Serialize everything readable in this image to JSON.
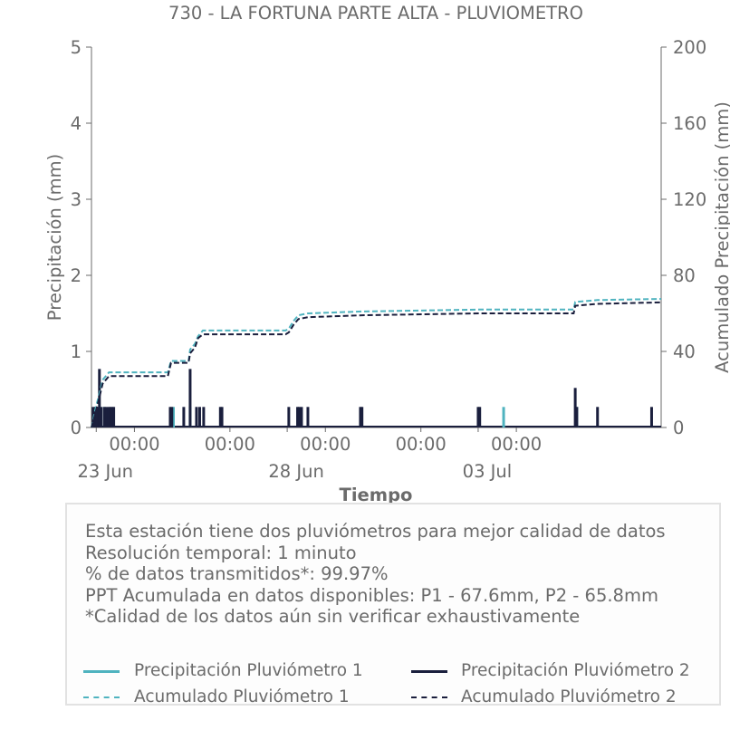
{
  "chart_data": {
    "type": "bar+line",
    "title": "730 - LA FORTUNA PARTE ALTA - PLUVIOMETRO",
    "xlabel": "Tiempo",
    "ylabel": "Precipitación (mm)",
    "y2label": "Acumulado Precipitación (mm)",
    "ylim": [
      0,
      5
    ],
    "y2lim": [
      0,
      200
    ],
    "yticks": [
      0,
      1,
      2,
      3,
      4,
      5
    ],
    "y2ticks": [
      0,
      40,
      80,
      120,
      160,
      200
    ],
    "xlim": [
      "2023-06-22T21:00",
      "2023-07-07T19:00"
    ],
    "x_time_ticks": [
      {
        "t": "2023-06-24T00:00",
        "label": "00:00"
      },
      {
        "t": "2023-06-26T12:00",
        "label": "00:00"
      },
      {
        "t": "2023-06-29T00:00",
        "label": "00:00"
      },
      {
        "t": "2023-07-01T12:00",
        "label": "00:00"
      },
      {
        "t": "2023-07-04T00:00",
        "label": "00:00"
      }
    ],
    "x_date_ticks": [
      {
        "t": "2023-06-23T00:00",
        "label": "23 Jun"
      },
      {
        "t": "2023-06-28T00:00",
        "label": "28 Jun"
      },
      {
        "t": "2023-07-03T00:00",
        "label": "03 Jul"
      }
    ],
    "colors": {
      "p1": "#4fb3bf",
      "p2": "#1a1f3d",
      "axis": "#6b6b6b"
    },
    "series": [
      {
        "name": "Precipitación Pluviómetro 1",
        "kind": "bar",
        "points": [
          {
            "t": "2023-06-22T23:00",
            "v": 0.27
          },
          {
            "t": "2023-06-23T05:00",
            "v": 0.27
          },
          {
            "t": "2023-06-25T00:30",
            "v": 0.27
          },
          {
            "t": "2023-06-25T11:00",
            "v": 0.27
          },
          {
            "t": "2023-07-03T16:00",
            "v": 0.27
          },
          {
            "t": "2023-07-05T14:00",
            "v": 0.27
          }
        ]
      },
      {
        "name": "Precipitación Pluviómetro 2",
        "kind": "bar",
        "points": [
          {
            "t": "2023-06-22T22:00",
            "v": 0.27
          },
          {
            "t": "2023-06-22T23:30",
            "v": 0.27
          },
          {
            "t": "2023-06-23T01:00",
            "v": 0.27
          },
          {
            "t": "2023-06-23T02:00",
            "v": 0.77
          },
          {
            "t": "2023-06-23T03:00",
            "v": 0.27
          },
          {
            "t": "2023-06-23T05:00",
            "v": 0.27
          },
          {
            "t": "2023-06-23T06:30",
            "v": 0.27
          },
          {
            "t": "2023-06-23T08:00",
            "v": 0.27
          },
          {
            "t": "2023-06-23T09:00",
            "v": 0.27
          },
          {
            "t": "2023-06-23T10:00",
            "v": 0.27
          },
          {
            "t": "2023-06-23T11:00",
            "v": 0.27
          },
          {
            "t": "2023-06-24T22:30",
            "v": 0.27
          },
          {
            "t": "2023-06-24T23:30",
            "v": 0.27
          },
          {
            "t": "2023-06-25T07:00",
            "v": 0.27
          },
          {
            "t": "2023-06-25T11:00",
            "v": 0.77
          },
          {
            "t": "2023-06-25T15:00",
            "v": 0.27
          },
          {
            "t": "2023-06-25T17:00",
            "v": 0.27
          },
          {
            "t": "2023-06-25T19:30",
            "v": 0.27
          },
          {
            "t": "2023-06-26T06:00",
            "v": 0.27
          },
          {
            "t": "2023-06-26T07:00",
            "v": 0.27
          },
          {
            "t": "2023-06-28T01:00",
            "v": 0.27
          },
          {
            "t": "2023-06-28T06:30",
            "v": 0.27
          },
          {
            "t": "2023-06-28T07:30",
            "v": 0.27
          },
          {
            "t": "2023-06-28T09:00",
            "v": 0.27
          },
          {
            "t": "2023-06-28T13:00",
            "v": 0.27
          },
          {
            "t": "2023-06-29T22:00",
            "v": 0.27
          },
          {
            "t": "2023-06-29T23:00",
            "v": 0.27
          },
          {
            "t": "2023-07-03T00:00",
            "v": 0.27
          },
          {
            "t": "2023-07-03T01:00",
            "v": 0.27
          },
          {
            "t": "2023-07-05T13:00",
            "v": 0.52
          },
          {
            "t": "2023-07-05T14:00",
            "v": 0.27
          },
          {
            "t": "2023-07-06T03:00",
            "v": 0.27
          },
          {
            "t": "2023-07-07T13:00",
            "v": 0.27
          }
        ]
      },
      {
        "name": "Acumulado Pluviómetro 1",
        "kind": "step-dashed",
        "axis": "right",
        "points": [
          {
            "t": "2023-06-22T21:00",
            "v": 0
          },
          {
            "t": "2023-06-22T23:00",
            "v": 8
          },
          {
            "t": "2023-06-23T02:00",
            "v": 18
          },
          {
            "t": "2023-06-23T04:00",
            "v": 25
          },
          {
            "t": "2023-06-23T08:00",
            "v": 29
          },
          {
            "t": "2023-06-24T21:00",
            "v": 29
          },
          {
            "t": "2023-06-24T23:00",
            "v": 35
          },
          {
            "t": "2023-06-25T10:00",
            "v": 35
          },
          {
            "t": "2023-06-25T11:00",
            "v": 41
          },
          {
            "t": "2023-06-25T14:00",
            "v": 44
          },
          {
            "t": "2023-06-25T16:00",
            "v": 48
          },
          {
            "t": "2023-06-25T19:00",
            "v": 51
          },
          {
            "t": "2023-06-27T23:00",
            "v": 51
          },
          {
            "t": "2023-06-28T01:00",
            "v": 52
          },
          {
            "t": "2023-06-28T04:00",
            "v": 56
          },
          {
            "t": "2023-06-28T07:00",
            "v": 59
          },
          {
            "t": "2023-06-28T13:00",
            "v": 60
          },
          {
            "t": "2023-06-29T23:00",
            "v": 61
          },
          {
            "t": "2023-07-03T00:00",
            "v": 62
          },
          {
            "t": "2023-07-05T12:00",
            "v": 62
          },
          {
            "t": "2023-07-05T13:00",
            "v": 66
          },
          {
            "t": "2023-07-06T03:00",
            "v": 67
          },
          {
            "t": "2023-07-07T19:00",
            "v": 67.6
          }
        ]
      },
      {
        "name": "Acumulado Pluviómetro 2",
        "kind": "step-dashed",
        "axis": "right",
        "points": [
          {
            "t": "2023-06-22T21:00",
            "v": 0
          },
          {
            "t": "2023-06-22T23:00",
            "v": 6
          },
          {
            "t": "2023-06-23T02:00",
            "v": 16
          },
          {
            "t": "2023-06-23T04:00",
            "v": 23
          },
          {
            "t": "2023-06-23T08:00",
            "v": 27
          },
          {
            "t": "2023-06-24T21:00",
            "v": 27
          },
          {
            "t": "2023-06-24T23:00",
            "v": 34
          },
          {
            "t": "2023-06-25T10:00",
            "v": 34
          },
          {
            "t": "2023-06-25T11:00",
            "v": 39
          },
          {
            "t": "2023-06-25T14:00",
            "v": 42
          },
          {
            "t": "2023-06-25T16:00",
            "v": 47
          },
          {
            "t": "2023-06-25T19:00",
            "v": 49
          },
          {
            "t": "2023-06-27T23:00",
            "v": 49
          },
          {
            "t": "2023-06-28T01:00",
            "v": 50
          },
          {
            "t": "2023-06-28T04:00",
            "v": 54
          },
          {
            "t": "2023-06-28T07:00",
            "v": 57
          },
          {
            "t": "2023-06-28T13:00",
            "v": 58
          },
          {
            "t": "2023-06-29T23:00",
            "v": 59
          },
          {
            "t": "2023-07-03T00:00",
            "v": 60
          },
          {
            "t": "2023-07-05T12:00",
            "v": 60
          },
          {
            "t": "2023-07-05T13:00",
            "v": 64
          },
          {
            "t": "2023-07-06T03:00",
            "v": 65
          },
          {
            "t": "2023-07-07T19:00",
            "v": 65.8
          }
        ]
      }
    ]
  },
  "info": {
    "lines": [
      "Esta estación tiene dos pluviómetros para mejor calidad de datos",
      "Resolución temporal: 1 minuto",
      "% de datos transmitidos*: 99.97%",
      "PPT Acumulada en datos disponibles: P1 - 67.6mm, P2 - 65.8mm",
      "*Calidad de los datos aún sin verificar exhaustivamente"
    ]
  },
  "legend": {
    "p1_precip": "Precipitación Pluviómetro 1",
    "p2_precip": "Precipitación Pluviómetro 2",
    "p1_acum": "Acumulado Pluviómetro 1",
    "p2_acum": "Acumulado Pluviómetro 2"
  }
}
